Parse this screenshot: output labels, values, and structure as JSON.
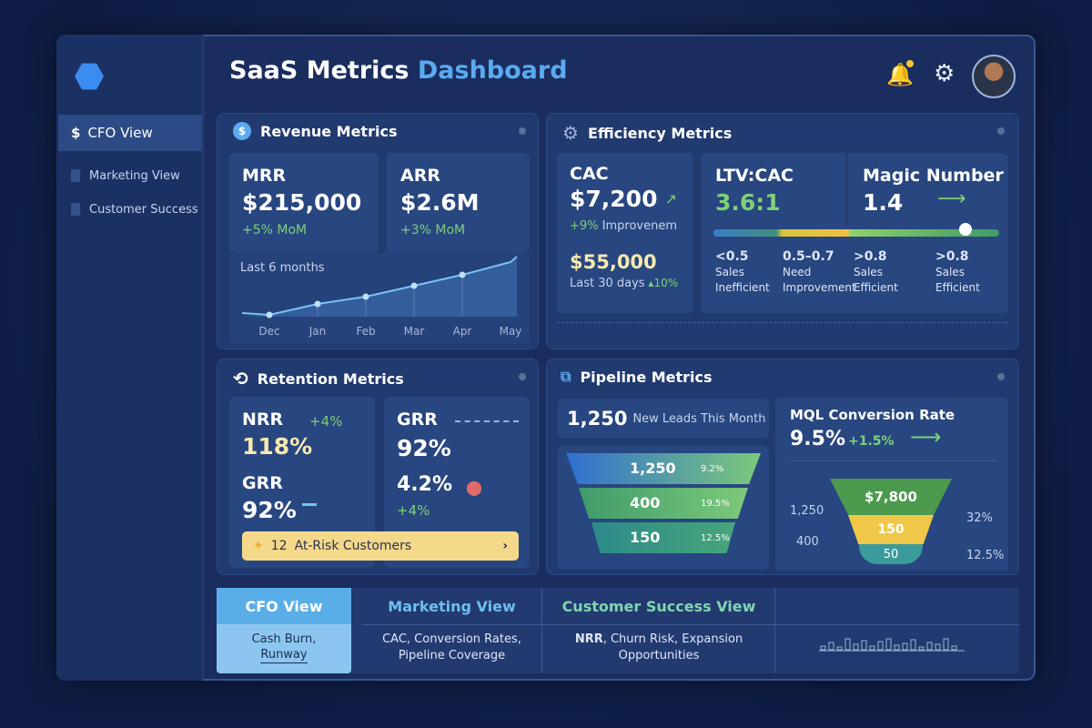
{
  "header": {
    "title_a": "SaaS Metrics",
    "title_b": "Dashboard"
  },
  "sidebar": {
    "items": [
      {
        "label": "CFO View",
        "icon": "dollar-icon"
      },
      {
        "label": "Marketing View"
      },
      {
        "label": "Customer Success"
      }
    ]
  },
  "revenue": {
    "title": "Revenue Metrics",
    "mrr": {
      "label": "MRR",
      "value": "$215,000",
      "change": "+5% MoM"
    },
    "arr": {
      "label": "ARR",
      "value": "$2.6M",
      "change": "+3% MoM"
    },
    "chart_label": "Last 6 months",
    "months": [
      "Dec",
      "Jan",
      "Feb",
      "Mar",
      "Apr",
      "May"
    ]
  },
  "efficiency": {
    "title": "Efficiency Metrics",
    "cac": {
      "label": "CAC",
      "value": "$7,200",
      "change": "+9%",
      "change_text": "Improvenem",
      "spend": "$55,000",
      "period": "Last 30 days",
      "period_change": "10%"
    },
    "ltv": {
      "label": "LTV:CAC",
      "value": "3.6:1"
    },
    "magic": {
      "label": "Magic Number",
      "value": "1.4"
    },
    "scale": [
      {
        "range": "<0.5",
        "l1": "Sales",
        "l2": "Inefficient"
      },
      {
        "range": "0.5–0.7",
        "l1": "Need",
        "l2": "Improvement"
      },
      {
        "range": ">0.8",
        "l1": "Sales",
        "l2": "Efficient"
      },
      {
        "range": ">0.8",
        "l1": "Sales",
        "l2": "Efficient"
      }
    ]
  },
  "retention": {
    "title": "Retention Metrics",
    "nrr": {
      "label": "NRR",
      "change": "+4%",
      "value": "118%"
    },
    "grr_top": {
      "label": "GRR",
      "value": "92%"
    },
    "grr": {
      "label": "GRR",
      "value": "92%"
    },
    "churn": {
      "value": "4.2%",
      "change": "+4%"
    },
    "alert": {
      "count": "12",
      "text": "At-Risk Customers"
    }
  },
  "pipeline": {
    "title": "Pipeline Metrics",
    "leads": "1,250",
    "leads_text": "New Leads This Month",
    "funnel": [
      {
        "value": "1,250",
        "pct": "9.2%"
      },
      {
        "value": "400",
        "pct": "19.5%"
      },
      {
        "value": "150",
        "pct": "12.5%"
      }
    ],
    "mql": {
      "label": "MQL Conversion Rate",
      "value": "9.5%",
      "change": "+1.5%",
      "top": "$7,800",
      "mid": "150",
      "bot": "50",
      "left1": "1,250",
      "left2": "400",
      "right1": "32%",
      "right2": "12.5%"
    }
  },
  "views": [
    {
      "title": "CFO View",
      "desc1": "Cash Burn,",
      "desc2": "Runway"
    },
    {
      "title": "Marketing View",
      "desc1": "CAC, Conversion Rates,",
      "desc2": "Pipeline Coverage"
    },
    {
      "title": "Customer Success View",
      "desc_bold": "NRR",
      "desc1": ", Churn Risk, Expansion",
      "desc2": "Opportunities"
    }
  ],
  "colors": {
    "accent": "#5aaaf0",
    "positive": "#7ed07a",
    "warning": "#f4d98a"
  }
}
